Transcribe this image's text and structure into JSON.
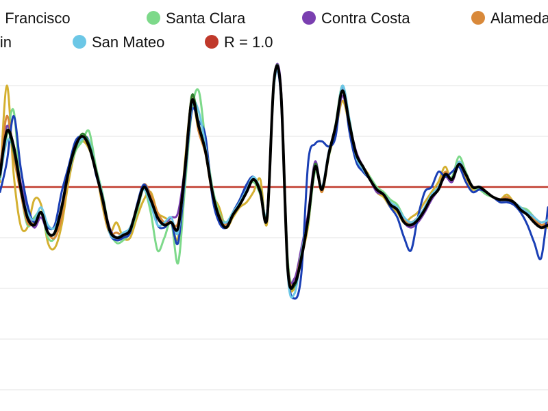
{
  "chart_data": {
    "type": "line",
    "title": "",
    "xlabel": "",
    "ylabel": "",
    "ylim": [
      0,
      1.6
    ],
    "grid": "horizontal",
    "legend_position": "top",
    "x": [
      0,
      1,
      2,
      3,
      4,
      5,
      6,
      7,
      8,
      9,
      10,
      11,
      12,
      13,
      14,
      15,
      16,
      17,
      18,
      19,
      20,
      21,
      22,
      23,
      24,
      25,
      26,
      27,
      28,
      29,
      30,
      31,
      32,
      33,
      34,
      35,
      36,
      37,
      38,
      39,
      40,
      41,
      42,
      43,
      44,
      45,
      46,
      47,
      48,
      49,
      50,
      51,
      52,
      53,
      54,
      55,
      56,
      57,
      58,
      59,
      60,
      61,
      62,
      63,
      64,
      65,
      66,
      67,
      68,
      69,
      70,
      71,
      72,
      73,
      74,
      75,
      76,
      77,
      78,
      79,
      80
    ],
    "reference_line": {
      "name": "R = 1.0",
      "value": 1.0,
      "color": "#c0392b"
    },
    "series": [
      {
        "name": "San Francisco",
        "color": "#d4b030",
        "values": [
          1.02,
          1.4,
          1.05,
          0.85,
          0.84,
          0.95,
          0.93,
          0.78,
          0.76,
          0.85,
          1.02,
          1.14,
          1.18,
          1.15,
          1.07,
          0.92,
          0.82,
          0.86,
          0.8,
          0.8,
          0.88,
          0.95,
          0.98,
          0.9,
          0.88,
          0.86,
          0.8,
          1.1,
          1.34,
          1.22,
          1.15,
          0.98,
          0.92,
          0.84,
          0.88,
          0.92,
          0.94,
          0.98,
          1.03,
          0.86,
          1.42,
          1.38,
          0.68,
          0.6,
          0.72,
          0.85,
          1.08,
          0.98,
          1.12,
          1.22,
          1.34,
          1.24,
          1.12,
          1.08,
          1.04,
          0.98,
          0.96,
          0.92,
          0.9,
          0.86,
          0.88,
          0.9,
          0.94,
          0.98,
          1.02,
          1.08,
          1.02,
          1.1,
          1.04,
          0.99,
          1.0,
          0.98,
          0.96,
          0.95,
          0.97,
          0.94,
          0.91,
          0.9,
          0.86,
          0.84,
          0.84
        ]
      },
      {
        "name": "Santa Clara",
        "color": "#7dd98a",
        "values": [
          1.05,
          1.2,
          1.3,
          1.0,
          0.85,
          0.88,
          0.9,
          0.8,
          0.8,
          0.9,
          1.05,
          1.14,
          1.18,
          1.22,
          1.08,
          0.97,
          0.83,
          0.78,
          0.79,
          0.82,
          0.9,
          0.99,
          0.9,
          0.75,
          0.8,
          0.86,
          0.7,
          1.0,
          1.3,
          1.38,
          1.18,
          1.0,
          0.9,
          0.86,
          0.9,
          0.94,
          0.99,
          1.02,
          0.97,
          0.88,
          1.4,
          1.38,
          0.72,
          0.62,
          0.74,
          0.86,
          1.06,
          1.0,
          1.12,
          1.25,
          1.4,
          1.26,
          1.12,
          1.07,
          1.04,
          1.0,
          0.98,
          0.95,
          0.93,
          0.88,
          0.86,
          0.88,
          0.92,
          0.97,
          1.0,
          1.05,
          1.04,
          1.12,
          1.06,
          1.0,
          0.99,
          0.97,
          0.96,
          0.95,
          0.96,
          0.94,
          0.92,
          0.91,
          0.88,
          0.86,
          0.87
        ]
      },
      {
        "name": "Contra Costa",
        "color": "#7a3fb0",
        "values": [
          1.08,
          1.24,
          1.16,
          1.02,
          0.9,
          0.84,
          0.88,
          0.82,
          0.82,
          0.92,
          1.07,
          1.16,
          1.2,
          1.17,
          1.06,
          0.95,
          0.84,
          0.8,
          0.81,
          0.84,
          0.92,
          1.0,
          0.96,
          0.88,
          0.86,
          0.88,
          0.9,
          1.08,
          1.34,
          1.24,
          1.14,
          0.98,
          0.86,
          0.85,
          0.9,
          0.94,
          1.0,
          1.03,
          0.98,
          0.9,
          1.42,
          1.4,
          0.7,
          0.64,
          0.76,
          0.9,
          1.1,
          0.99,
          1.14,
          1.23,
          1.36,
          1.25,
          1.14,
          1.08,
          1.03,
          0.98,
          0.97,
          0.93,
          0.92,
          0.86,
          0.84,
          0.86,
          0.9,
          0.95,
          0.99,
          1.04,
          1.02,
          1.09,
          1.05,
          1.0,
          1.0,
          0.98,
          0.96,
          0.95,
          0.95,
          0.94,
          0.92,
          0.9,
          0.88,
          0.85,
          0.86
        ]
      },
      {
        "name": "Alameda",
        "color": "#d9893a",
        "values": [
          1.06,
          1.28,
          1.12,
          0.98,
          0.86,
          0.86,
          0.9,
          0.82,
          0.8,
          0.88,
          1.05,
          1.15,
          1.19,
          1.16,
          1.07,
          0.93,
          0.82,
          0.82,
          0.81,
          0.83,
          0.92,
          1.01,
          0.97,
          0.9,
          0.86,
          0.86,
          0.86,
          1.06,
          1.36,
          1.22,
          1.13,
          0.97,
          0.89,
          0.85,
          0.89,
          0.93,
          0.98,
          1.03,
          0.99,
          0.88,
          1.42,
          1.38,
          0.7,
          0.62,
          0.74,
          0.88,
          1.08,
          0.98,
          1.13,
          1.24,
          1.38,
          1.25,
          1.13,
          1.08,
          1.03,
          0.99,
          0.97,
          0.93,
          0.91,
          0.87,
          0.86,
          0.88,
          0.91,
          0.96,
          1.0,
          1.06,
          1.03,
          1.1,
          1.05,
          1.0,
          1.0,
          0.98,
          0.96,
          0.95,
          0.96,
          0.94,
          0.92,
          0.9,
          0.87,
          0.85,
          0.86
        ]
      },
      {
        "name": "Marin",
        "color": "#1a3fb5",
        "values": [
          0.98,
          1.1,
          1.28,
          1.08,
          0.93,
          0.86,
          0.9,
          0.84,
          0.85,
          0.98,
          1.08,
          1.18,
          1.2,
          1.18,
          1.05,
          0.96,
          0.82,
          0.79,
          0.8,
          0.82,
          0.93,
          1.01,
          0.95,
          0.85,
          0.84,
          0.86,
          0.78,
          1.04,
          1.3,
          1.26,
          1.2,
          0.96,
          0.86,
          0.84,
          0.9,
          0.95,
          1.01,
          1.04,
          0.98,
          0.9,
          1.42,
          1.36,
          0.68,
          0.56,
          0.66,
          1.1,
          1.17,
          1.18,
          1.16,
          1.2,
          1.4,
          1.22,
          1.1,
          1.06,
          1.03,
          0.99,
          0.97,
          0.92,
          0.88,
          0.8,
          0.75,
          0.88,
          0.98,
          1.0,
          1.06,
          1.04,
          1.06,
          1.08,
          1.02,
          0.98,
          0.99,
          0.98,
          0.96,
          0.94,
          0.94,
          0.93,
          0.9,
          0.85,
          0.78,
          0.72,
          0.92
        ]
      },
      {
        "name": "San Mateo",
        "color": "#6cc7e6",
        "values": [
          1.03,
          1.18,
          1.15,
          1.0,
          0.9,
          0.87,
          0.92,
          0.85,
          0.84,
          0.92,
          1.05,
          1.15,
          1.19,
          1.18,
          1.07,
          0.96,
          0.82,
          0.8,
          0.82,
          0.84,
          0.92,
          0.99,
          0.93,
          0.85,
          0.86,
          0.88,
          0.82,
          1.06,
          1.32,
          1.3,
          1.16,
          0.99,
          0.88,
          0.86,
          0.9,
          0.94,
          0.99,
          1.04,
          0.99,
          0.9,
          1.4,
          1.38,
          0.66,
          0.58,
          0.74,
          0.88,
          1.08,
          1.0,
          1.14,
          1.24,
          1.4,
          1.27,
          1.12,
          1.07,
          1.03,
          0.99,
          0.97,
          0.94,
          0.92,
          0.88,
          0.86,
          0.88,
          0.92,
          0.97,
          1.0,
          1.05,
          1.03,
          1.1,
          1.05,
          1.0,
          1.0,
          0.98,
          0.96,
          0.95,
          0.95,
          0.94,
          0.92,
          0.9,
          0.88,
          0.86,
          0.87
        ]
      },
      {
        "name": "",
        "color": "#2e7d2e",
        "values": [
          1.04,
          1.22,
          1.14,
          1.0,
          0.88,
          0.85,
          0.9,
          0.82,
          0.82,
          0.91,
          1.06,
          1.15,
          1.21,
          1.17,
          1.07,
          0.94,
          0.83,
          0.8,
          0.81,
          0.83,
          0.92,
          1.0,
          0.95,
          0.88,
          0.85,
          0.86,
          0.84,
          1.06,
          1.36,
          1.25,
          1.14,
          0.98,
          0.88,
          0.84,
          0.89,
          0.93,
          0.98,
          1.03,
          0.99,
          0.89,
          1.42,
          1.39,
          0.69,
          0.61,
          0.73,
          0.88,
          1.09,
          0.99,
          1.13,
          1.24,
          1.38,
          1.26,
          1.13,
          1.08,
          1.03,
          0.99,
          0.97,
          0.93,
          0.91,
          0.86,
          0.85,
          0.87,
          0.91,
          0.96,
          0.99,
          1.05,
          1.03,
          1.09,
          1.05,
          1.0,
          1.0,
          0.98,
          0.96,
          0.95,
          0.95,
          0.94,
          0.91,
          0.89,
          0.86,
          0.84,
          0.85
        ]
      },
      {
        "name": "",
        "color": "#000000",
        "values": [
          1.05,
          1.22,
          1.16,
          1.0,
          0.88,
          0.85,
          0.9,
          0.82,
          0.82,
          0.92,
          1.06,
          1.16,
          1.2,
          1.16,
          1.06,
          0.95,
          0.83,
          0.8,
          0.81,
          0.83,
          0.92,
          1.0,
          0.95,
          0.88,
          0.85,
          0.86,
          0.84,
          1.07,
          1.34,
          1.24,
          1.14,
          0.98,
          0.88,
          0.84,
          0.89,
          0.93,
          0.98,
          1.03,
          0.98,
          0.88,
          1.42,
          1.38,
          0.68,
          0.62,
          0.72,
          0.88,
          1.08,
          0.99,
          1.13,
          1.24,
          1.38,
          1.25,
          1.13,
          1.08,
          1.03,
          0.99,
          0.97,
          0.93,
          0.91,
          0.86,
          0.85,
          0.87,
          0.91,
          0.96,
          0.99,
          1.05,
          1.03,
          1.09,
          1.05,
          1.0,
          1.0,
          0.98,
          0.96,
          0.95,
          0.95,
          0.94,
          0.91,
          0.89,
          0.86,
          0.84,
          0.85
        ]
      }
    ]
  }
}
